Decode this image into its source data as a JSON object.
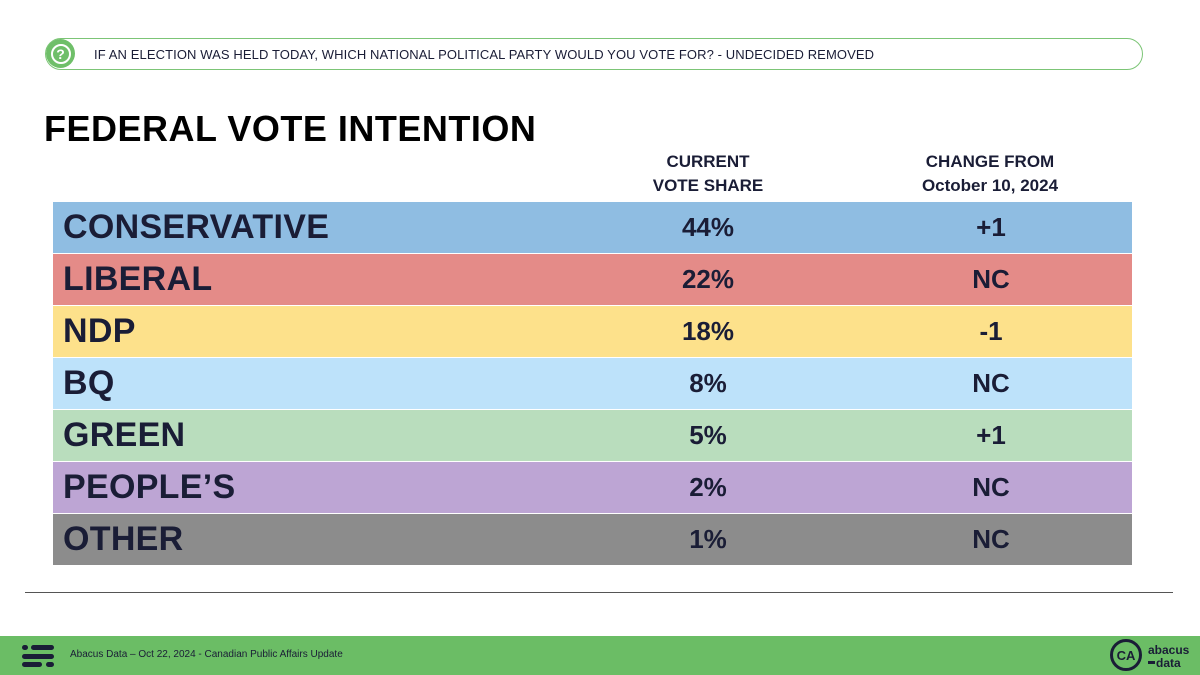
{
  "question": {
    "icon": "question-circle-icon",
    "text": "IF AN ELECTION WAS HELD TODAY, WHICH NATIONAL POLITICAL PARTY WOULD YOU VOTE FOR? - UNDECIDED REMOVED"
  },
  "title": "FEDERAL VOTE INTENTION",
  "headers": {
    "share_line1": "CURRENT",
    "share_line2": "VOTE SHARE",
    "change_line1": "CHANGE FROM",
    "change_line2": "October 10, 2024"
  },
  "chart_data": {
    "type": "table",
    "columns": [
      "CURRENT VOTE SHARE",
      "CHANGE FROM October 10, 2024"
    ],
    "rows": [
      {
        "party": "CONSERVATIVE",
        "share": "44%",
        "change": "+1",
        "color": "#8fbde2"
      },
      {
        "party": "LIBERAL",
        "share": "22%",
        "change": "NC",
        "color": "#e48b88"
      },
      {
        "party": "NDP",
        "share": "18%",
        "change": "-1",
        "color": "#fde18b"
      },
      {
        "party": "BQ",
        "share": "8%",
        "change": "NC",
        "color": "#bde2fa"
      },
      {
        "party": "GREEN",
        "share": "5%",
        "change": "+1",
        "color": "#b9ddbd"
      },
      {
        "party": "PEOPLE’S",
        "share": "2%",
        "change": "NC",
        "color": "#bda5d4"
      },
      {
        "party": "OTHER",
        "share": "1%",
        "change": "NC",
        "color": "#8c8c8c"
      }
    ]
  },
  "footer": {
    "text": "Abacus Data – Oct 22, 2024 - Canadian Public Affairs Update",
    "logo_mark": "CA",
    "logo_line1": "abacus",
    "logo_line2": "data",
    "icon": "abacus-lines-icon",
    "color": "#6bbd65"
  }
}
